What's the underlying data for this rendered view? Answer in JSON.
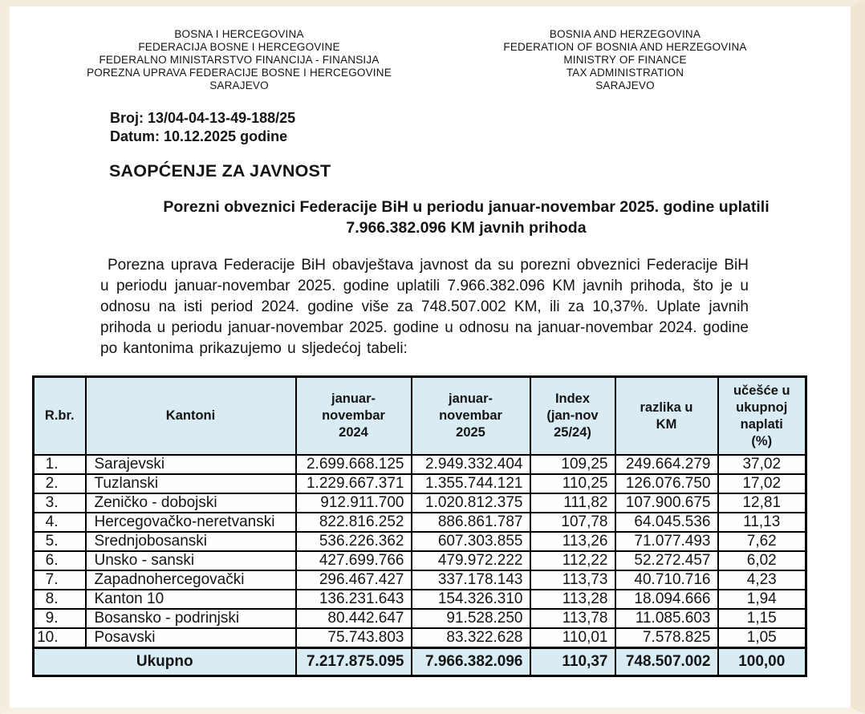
{
  "letterhead": {
    "bosnian": [
      "BOSNA I HERCEGOVINA",
      "FEDERACIJA BOSNE I HERCEGOVINE",
      "FEDERALNO MINISTARSTVO FINANCIJA - FINANSIJA",
      "POREZNA UPRAVA FEDERACIJE BOSNE I HERCEGOVINE",
      "SARAJEVO"
    ],
    "english": [
      "BOSNIA AND HERZEGOVINA",
      "FEDERATION OF BOSNIA AND HERZEGOVINA",
      "MINISTRY OF FINANCE",
      "TAX ADMINISTRATION",
      "SARAJEVO"
    ]
  },
  "meta": {
    "number_line": "Broj: 13/04-04-13-49-188/25",
    "date_line": "Datum: 10.12.2025 godine"
  },
  "document": {
    "section_heading": "SAOPĆENJE ZA JAVNOST",
    "title": "Porezni obveznici Federacije BiH u periodu januar-novembar 2025. godine uplatili 7.966.382.096 KM javnih prihoda",
    "body_paragraph": "Porezna uprava Federacije BiH obavještava javnost da su porezni obveznici Federacije BiH u periodu januar-novembar 2025. godine uplatili 7.966.382.096 KM javnih prihoda, što je u odnosu na isti period 2024. godine više za 748.507.002 KM, ili za 10,37%.  Uplate javnih prihoda u periodu januar-novembar 2025. godine u odnosu na januar-novembar 2024. godine po kantonima prikazujemo u sljedećoj tabeli:"
  },
  "table": {
    "header_bg": "#d9ecf3",
    "headers": [
      "R.br.",
      "Kantoni",
      "januar-\nnovembar\n2024",
      "januar-\nnovembar\n2025",
      "Index\n(jan-nov\n25/24)",
      "razlika u\nKM",
      "učešće u\nukupnoj\nnaplati\n(%)"
    ],
    "rows": [
      [
        "1.",
        "Sarajevski",
        "2.699.668.125",
        "2.949.332.404",
        "109,25",
        "249.664.279",
        "37,02"
      ],
      [
        "2.",
        "Tuzlanski",
        "1.229.667.371",
        "1.355.744.121",
        "110,25",
        "126.076.750",
        "17,02"
      ],
      [
        "3.",
        "Zeničko - dobojski",
        "912.911.700",
        "1.020.812.375",
        "111,82",
        "107.900.675",
        "12,81"
      ],
      [
        "4.",
        "Hercegovačko-neretvanski",
        "822.816.252",
        "886.861.787",
        "107,78",
        "64.045.536",
        "11,13"
      ],
      [
        "5.",
        "Srednjobosanski",
        "536.226.362",
        "607.303.855",
        "113,26",
        "71.077.493",
        "7,62"
      ],
      [
        "6.",
        "Unsko - sanski",
        "427.699.766",
        "479.972.222",
        "112,22",
        "52.272.457",
        "6,02"
      ],
      [
        "7.",
        "Zapadnohercegovački",
        "296.467.427",
        "337.178.143",
        "113,73",
        "40.710.716",
        "4,23"
      ],
      [
        "8.",
        "Kanton 10",
        "136.231.643",
        "154.326.310",
        "113,28",
        "18.094.666",
        "1,94"
      ],
      [
        "9.",
        "Bosansko - podrinjski",
        "80.442.647",
        "91.528.250",
        "113,78",
        "11.085.603",
        "1,15"
      ],
      [
        "10.",
        "Posavski",
        "75.743.803",
        "83.322.628",
        "110,01",
        "7.578.825",
        "1,05"
      ]
    ],
    "total": {
      "label": "Ukupno",
      "values": [
        "7.217.875.095",
        "7.966.382.096",
        "110,37",
        "748.507.002",
        "100,00"
      ]
    }
  }
}
